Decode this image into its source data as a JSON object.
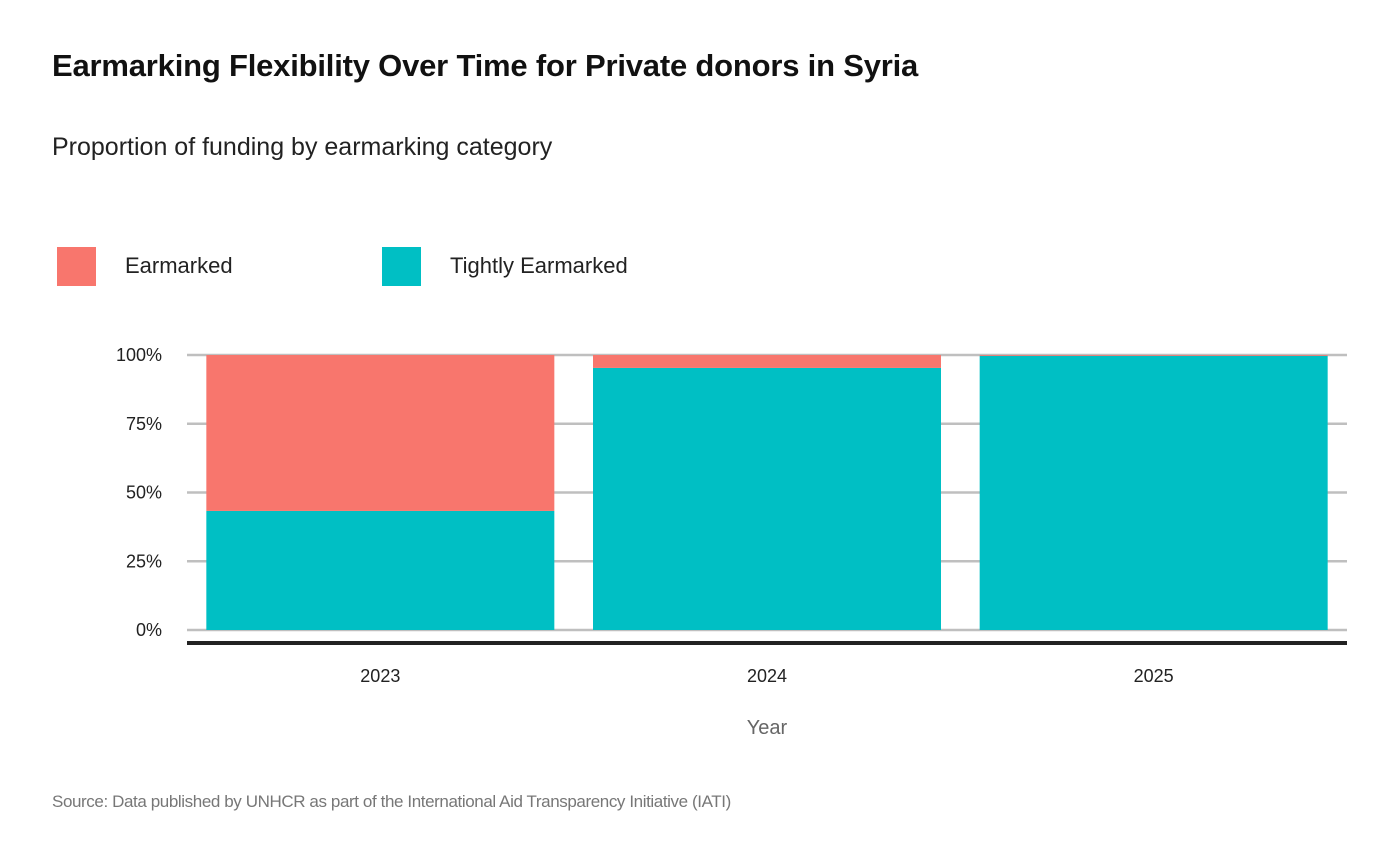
{
  "chart_data": {
    "type": "bar",
    "stacked": true,
    "title": "Earmarking Flexibility Over Time for Private donors in Syria",
    "subtitle": "Proportion of funding by earmarking category",
    "xlabel": "Year",
    "ylabel": "",
    "categories": [
      "2023",
      "2024",
      "2025"
    ],
    "series": [
      {
        "name": "Tightly Earmarked",
        "color": "#00BFC4",
        "values": [
          43.3,
          95.3,
          99.7
        ]
      },
      {
        "name": "Earmarked",
        "color": "#F8766D",
        "values": [
          56.7,
          4.7,
          0.3
        ]
      }
    ],
    "legend": [
      {
        "name": "Earmarked",
        "color": "#F8766D"
      },
      {
        "name": "Tightly Earmarked",
        "color": "#00BFC4"
      }
    ],
    "legend_position": "top-left",
    "yticks": [
      0,
      25,
      50,
      75,
      100
    ],
    "ytick_labels": [
      "0%",
      "25%",
      "50%",
      "75%",
      "100%"
    ],
    "ylim": [
      0,
      100
    ],
    "grid": true,
    "source": "Source: Data published by UNHCR as part of the International Aid Transparency Initiative (IATI)"
  }
}
